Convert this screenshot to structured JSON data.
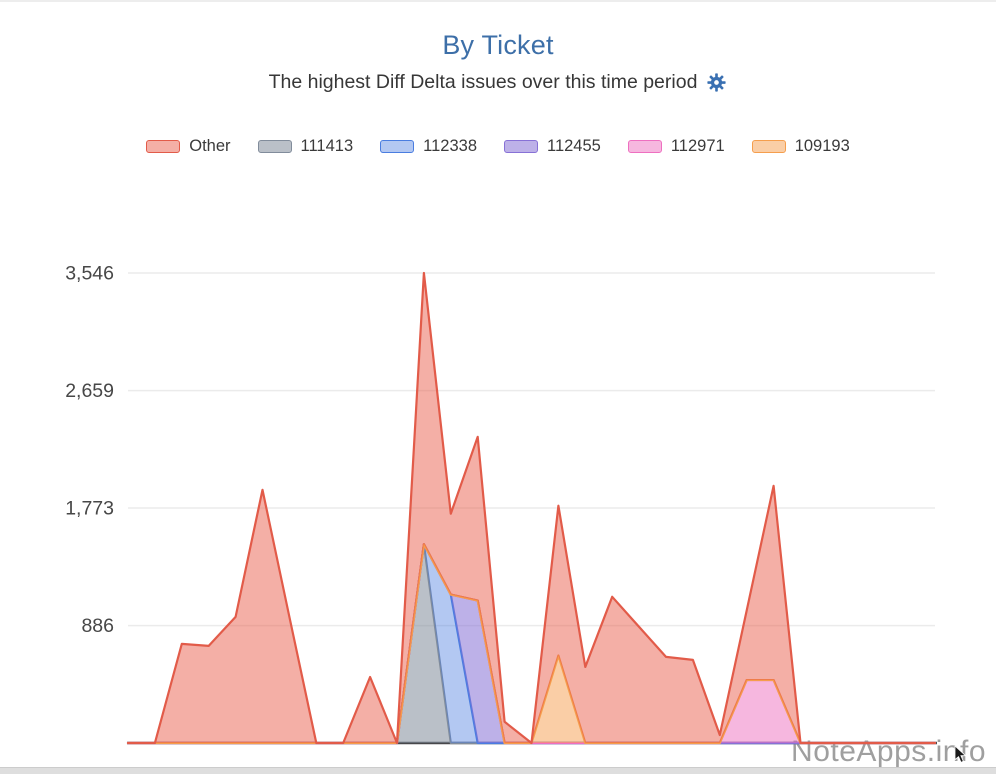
{
  "page": {
    "title": "By Ticket",
    "subtitle": "The highest Diff Delta issues over this time period",
    "watermark": "NoteApps.info"
  },
  "icons": {
    "settings": "gear"
  },
  "colors": {
    "title_blue": "#3d6fa8",
    "subtitle_text": "#373737",
    "gear_blue": "#3a70b2",
    "axis_line": "#47474a",
    "gridline": "#ebebeb",
    "tick_text": "#474747",
    "watermark_gray": "#9a9a9a"
  },
  "chart_data": {
    "type": "area",
    "stacked": true,
    "title": "By Ticket",
    "subtitle": "The highest Diff Delta issues over this time period",
    "xlabel": "",
    "ylabel": "",
    "x_points": 31,
    "x_tick_labels_visible": false,
    "ylim": [
      0,
      3546
    ],
    "yticks": [
      886,
      1773,
      2659,
      3546
    ],
    "ytick_labels": [
      "886",
      "1,773",
      "2,659",
      "3,546"
    ],
    "grid": "horizontal-only",
    "legend_position": "top",
    "stack_order_bottom_to_top": [
      "111413",
      "112338",
      "112455",
      "112971",
      "109193",
      "Other"
    ],
    "series": [
      {
        "name": "Other",
        "border": "#e25b49",
        "fill": "rgba(231,87,70,0.48)",
        "values": [
          0,
          0,
          748,
          733,
          952,
          1910,
          951,
          0,
          0,
          498,
          0,
          2046,
          610,
          1235,
          160,
          0,
          1130,
          574,
          1103,
          876,
          650,
          627,
          60,
          525,
          1465,
          0,
          0,
          0,
          0,
          0,
          0
        ]
      },
      {
        "name": "111413",
        "border": "#818c9b",
        "fill": "rgba(129,140,155,0.55)",
        "values": [
          0,
          0,
          0,
          0,
          0,
          0,
          0,
          0,
          0,
          0,
          0,
          1500,
          0,
          0,
          0,
          0,
          0,
          0,
          0,
          0,
          0,
          0,
          0,
          0,
          0,
          0,
          0,
          0,
          0,
          0,
          0
        ]
      },
      {
        "name": "112338",
        "border": "#4a7de0",
        "fill": "rgba(74,125,224,0.42)",
        "values": [
          0,
          0,
          0,
          0,
          0,
          0,
          0,
          0,
          0,
          0,
          0,
          0,
          1120,
          0,
          0,
          0,
          0,
          0,
          0,
          0,
          0,
          0,
          0,
          0,
          0,
          0,
          0,
          0,
          0,
          0,
          0
        ]
      },
      {
        "name": "112455",
        "border": "#8771d6",
        "fill": "rgba(135,113,214,0.55)",
        "values": [
          0,
          0,
          0,
          0,
          0,
          0,
          0,
          0,
          0,
          0,
          0,
          0,
          0,
          1075,
          0,
          0,
          0,
          0,
          0,
          0,
          0,
          0,
          0,
          0,
          0,
          0,
          0,
          0,
          0,
          0,
          0
        ]
      },
      {
        "name": "112971",
        "border": "#ee6fc0",
        "fill": "rgba(238,111,192,0.5)",
        "values": [
          0,
          0,
          0,
          0,
          0,
          0,
          0,
          0,
          0,
          0,
          0,
          0,
          0,
          0,
          0,
          0,
          0,
          0,
          0,
          0,
          0,
          0,
          0,
          475,
          475,
          0,
          0,
          0,
          0,
          0,
          0
        ]
      },
      {
        "name": "109193",
        "border": "#f59e4d",
        "fill": "rgba(245,158,77,0.5)",
        "values": [
          0,
          0,
          0,
          0,
          0,
          0,
          0,
          0,
          0,
          0,
          0,
          0,
          0,
          0,
          0,
          0,
          660,
          0,
          0,
          0,
          0,
          0,
          0,
          0,
          0,
          0,
          0,
          0,
          0,
          0,
          0
        ]
      }
    ]
  }
}
